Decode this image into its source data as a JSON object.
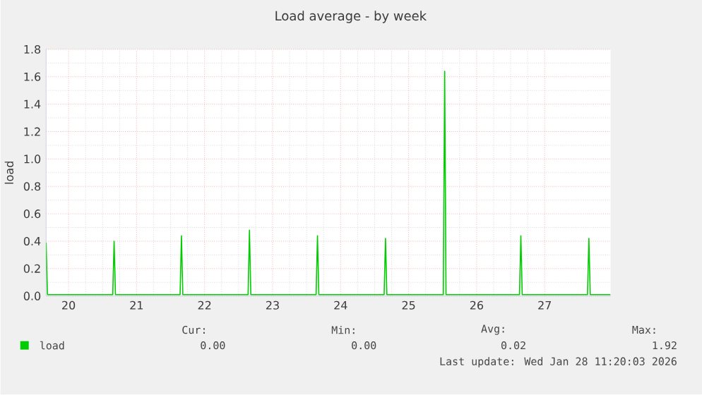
{
  "chart_data": {
    "type": "line",
    "title": "Load average - by week",
    "ylabel": "load",
    "x": [
      20.17,
      20.19,
      21.15,
      21.17,
      21.19,
      22.14,
      22.16,
      22.18,
      23.14,
      23.16,
      23.18,
      24.14,
      24.16,
      24.18,
      25.14,
      25.16,
      25.18,
      26.01,
      26.03,
      26.05,
      27.13,
      27.15,
      27.17,
      28.13,
      28.15,
      28.17,
      28.47
    ],
    "series": [
      {
        "name": "load",
        "color": "#00cc00",
        "values": [
          0.39,
          0.01,
          0.01,
          0.4,
          0.01,
          0.01,
          0.44,
          0.01,
          0.01,
          0.48,
          0.01,
          0.01,
          0.44,
          0.01,
          0.01,
          0.42,
          0.01,
          0.01,
          1.64,
          0.01,
          0.01,
          0.44,
          0.01,
          0.01,
          0.42,
          0.01,
          0.01
        ]
      }
    ],
    "xlim": [
      20.17,
      28.47
    ],
    "xticks": [
      {
        "value": 20.5,
        "label": "20"
      },
      {
        "value": 21.5,
        "label": "21"
      },
      {
        "value": 22.5,
        "label": "22"
      },
      {
        "value": 23.5,
        "label": "23"
      },
      {
        "value": 24.5,
        "label": "24"
      },
      {
        "value": 25.5,
        "label": "25"
      },
      {
        "value": 26.5,
        "label": "26"
      },
      {
        "value": 27.5,
        "label": "27"
      }
    ],
    "ylim": [
      0,
      1.8
    ],
    "yticks": [
      {
        "value": 0,
        "label": "0.0"
      },
      {
        "value": 0.2,
        "label": "0.2"
      },
      {
        "value": 0.4,
        "label": "0.4"
      },
      {
        "value": 0.6,
        "label": "0.6"
      },
      {
        "value": 0.8,
        "label": "0.8"
      },
      {
        "value": 1.0,
        "label": "1.0"
      },
      {
        "value": 1.2,
        "label": "1.2"
      },
      {
        "value": 1.4,
        "label": "1.4"
      },
      {
        "value": 1.6,
        "label": "1.6"
      },
      {
        "value": 1.8,
        "label": "1.8"
      }
    ],
    "grid": true,
    "legend": "bottom",
    "marker": "none",
    "line_style": "solid",
    "annotations": [
      "Cur:",
      "Min:",
      "Avg:",
      "Max:",
      "0.00",
      "0.00",
      "0.02",
      "1.92",
      "Last update: Wed Jan 28 11:20:03 2026"
    ]
  }
}
